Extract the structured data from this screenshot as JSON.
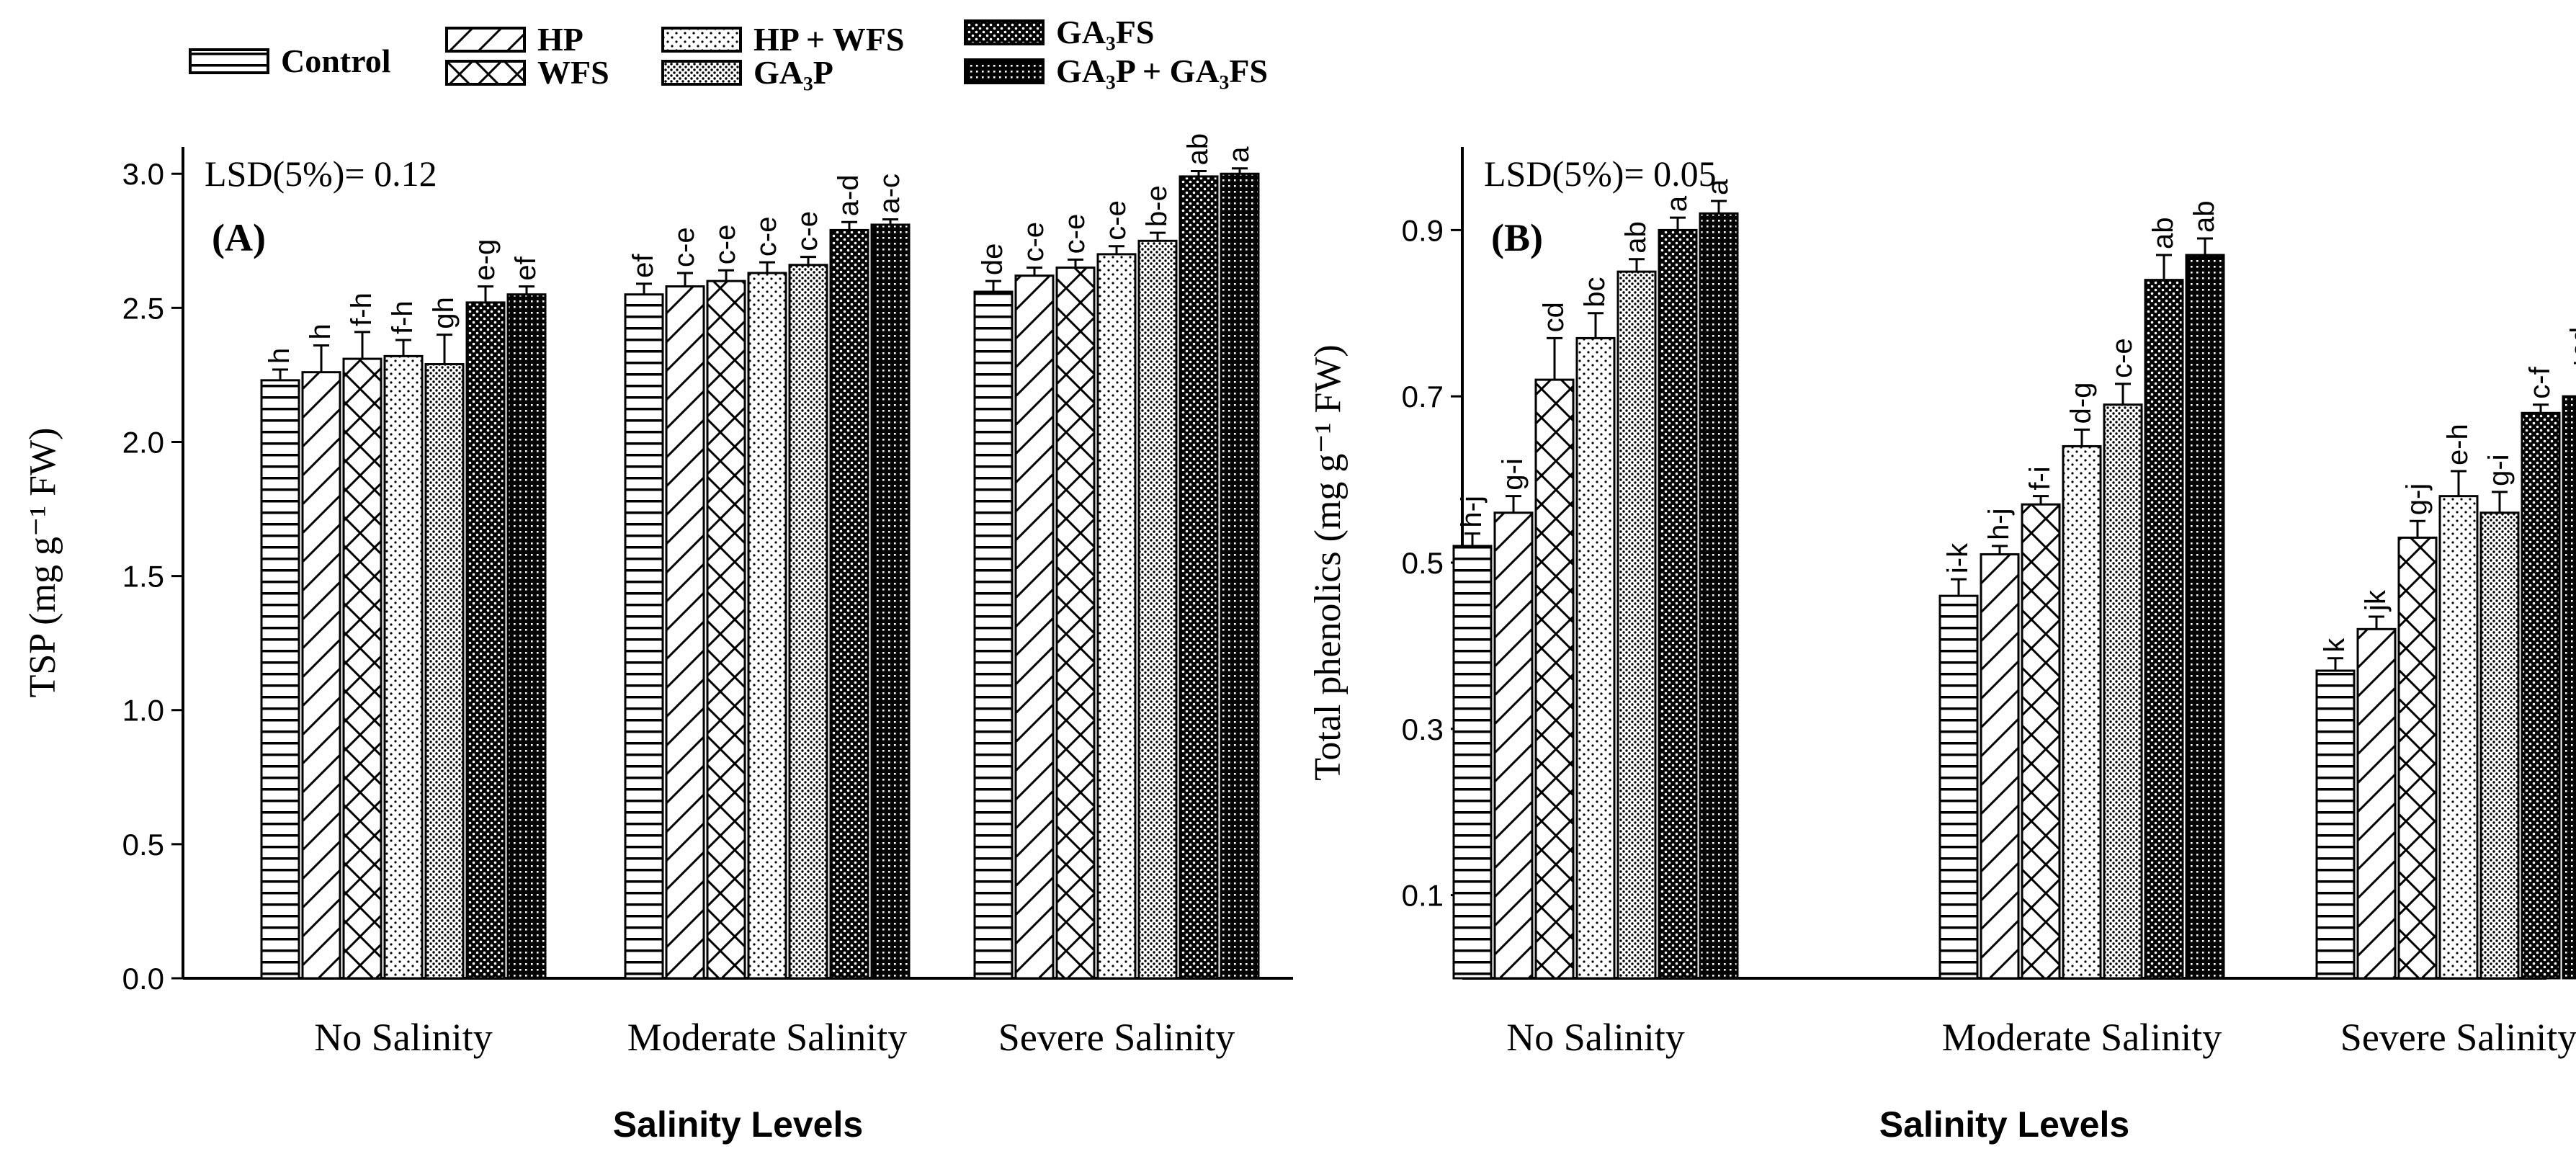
{
  "legend": {
    "items": [
      {
        "label": "Control",
        "pattern": "horizontal"
      },
      {
        "label": "HP",
        "pattern": "diagonal"
      },
      {
        "label": "WFS",
        "pattern": "crosshatch"
      },
      {
        "label": "HP + WFS",
        "pattern": "sparse-dots"
      },
      {
        "label": "GA₃P",
        "pattern": "dense-dots"
      },
      {
        "label": "GA₃FS",
        "pattern": "dots-dark"
      },
      {
        "label": "GA₃P + GA₃FS",
        "pattern": "grid-dark"
      }
    ]
  },
  "chart_data": [
    {
      "type": "bar",
      "panel_label": "(A)",
      "lsd_text": "LSD(5%)= 0.12",
      "xlabel": "Salinity Levels",
      "ylabel": "TSP (mg g⁻¹ FW)",
      "ylim": [
        0,
        3.1
      ],
      "yticks": [
        "0.0",
        "0.5",
        "1.0",
        "1.5",
        "2.0",
        "2.5",
        "3.0"
      ],
      "categories": [
        "No Salinity",
        "Moderate Salinity",
        "Severe Salinity"
      ],
      "series": [
        {
          "name": "Control",
          "values": [
            2.23,
            2.55,
            2.56
          ],
          "errors": [
            0.04,
            0.04,
            0.04
          ],
          "letters": [
            "h",
            "ef",
            "de"
          ]
        },
        {
          "name": "HP",
          "values": [
            2.26,
            2.58,
            2.62
          ],
          "errors": [
            0.1,
            0.05,
            0.03
          ],
          "letters": [
            "h",
            "c-e",
            "c-e"
          ]
        },
        {
          "name": "WFS",
          "values": [
            2.31,
            2.6,
            2.65
          ],
          "errors": [
            0.1,
            0.04,
            0.03
          ],
          "letters": [
            "f-h",
            "c-e",
            "c-e"
          ]
        },
        {
          "name": "HP + WFS",
          "values": [
            2.32,
            2.63,
            2.7
          ],
          "errors": [
            0.06,
            0.04,
            0.03
          ],
          "letters": [
            "f-h",
            "c-e",
            "c-e"
          ]
        },
        {
          "name": "GA₃P",
          "values": [
            2.29,
            2.66,
            2.75
          ],
          "errors": [
            0.11,
            0.03,
            0.03
          ],
          "letters": [
            "gh",
            "c-e",
            "b-e"
          ]
        },
        {
          "name": "GA₃FS",
          "values": [
            2.52,
            2.79,
            2.99
          ],
          "errors": [
            0.06,
            0.03,
            0.02
          ],
          "letters": [
            "e-g",
            "a-d",
            "ab"
          ]
        },
        {
          "name": "GA₃P + GA₃FS",
          "values": [
            2.55,
            2.81,
            3.0
          ],
          "errors": [
            0.03,
            0.02,
            0.02
          ],
          "letters": [
            "ef",
            "a-c",
            "a"
          ]
        }
      ]
    },
    {
      "type": "bar",
      "panel_label": "(B)",
      "lsd_text": "LSD(5%)= 0.05",
      "xlabel": "Salinity Levels",
      "ylabel": "Total phenolics (mg g⁻¹ FW)",
      "ylim": [
        0,
        1.0
      ],
      "yticks": [
        "0.1",
        "0.3",
        "0.5",
        "0.7",
        "0.9"
      ],
      "ytick_values": [
        0.1,
        0.3,
        0.5,
        0.7,
        0.9
      ],
      "categories": [
        "No Salinity",
        "Moderate Salinity",
        "Severe Salinity"
      ],
      "series": [
        {
          "name": "Control",
          "values": [
            0.52,
            0.46,
            0.37
          ],
          "errors": [
            0.015,
            0.02,
            0.015
          ],
          "letters": [
            "h-j",
            "i-k",
            "k"
          ]
        },
        {
          "name": "HP",
          "values": [
            0.56,
            0.51,
            0.42
          ],
          "errors": [
            0.02,
            0.01,
            0.015
          ],
          "letters": [
            "g-i",
            "h-j",
            "jk"
          ]
        },
        {
          "name": "WFS",
          "values": [
            0.72,
            0.57,
            0.53
          ],
          "errors": [
            0.05,
            0.01,
            0.02
          ],
          "letters": [
            "cd",
            "f-i",
            "g-j"
          ]
        },
        {
          "name": "HP + WFS",
          "values": [
            0.77,
            0.64,
            0.58
          ],
          "errors": [
            0.03,
            0.02,
            0.03
          ],
          "letters": [
            "bc",
            "d-g",
            "e-h"
          ]
        },
        {
          "name": "GA₃P",
          "values": [
            0.85,
            0.69,
            0.56
          ],
          "errors": [
            0.015,
            0.025,
            0.025
          ],
          "letters": [
            "ab",
            "c-e",
            "g-i"
          ]
        },
        {
          "name": "GA₃FS",
          "values": [
            0.9,
            0.84,
            0.68
          ],
          "errors": [
            0.015,
            0.03,
            0.01
          ],
          "letters": [
            "a",
            "ab",
            "c-f"
          ]
        },
        {
          "name": "GA₃P + GA₃FS",
          "values": [
            0.92,
            0.87,
            0.7
          ],
          "errors": [
            0.015,
            0.02,
            0.04
          ],
          "letters": [
            "a",
            "ab",
            "cd"
          ]
        }
      ]
    }
  ]
}
